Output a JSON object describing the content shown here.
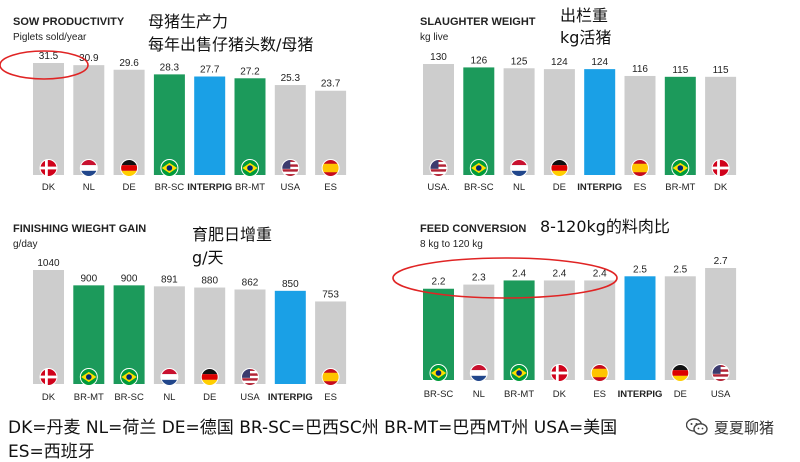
{
  "colors": {
    "grey": "#cdcdcd",
    "green": "#1c9a5b",
    "blue": "#1aa0e6",
    "ellipse": "#e02424"
  },
  "chart_data": [
    {
      "type": "bar",
      "title": "SOW PRODUCTIVITY",
      "subtitle": "Piglets sold/year",
      "annotation": [
        "母猪生产力",
        "每年出售仔猪头数/母猪"
      ],
      "categories": [
        "DK",
        "NL",
        "DE",
        "BR-SC",
        "INTERPIG",
        "BR-MT",
        "USA",
        "ES"
      ],
      "values": [
        31.5,
        30.9,
        29.6,
        28.3,
        27.7,
        27.2,
        25.3,
        23.7
      ],
      "value_labels": [
        "31.5",
        "30.9",
        "29.6",
        "28.3",
        "27.7",
        "27.2",
        "25.3",
        "23.7"
      ],
      "bar_colors": [
        "grey",
        "grey",
        "grey",
        "green",
        "blue",
        "green",
        "grey",
        "grey"
      ],
      "flags": [
        "dk",
        "nl",
        "de",
        "br",
        "none",
        "br",
        "us",
        "es"
      ],
      "flag_in_bar": [
        false,
        false,
        false,
        true,
        false,
        true,
        false,
        false
      ],
      "ylim": [
        0,
        31.5
      ],
      "highlight": [
        0,
        1
      ]
    },
    {
      "type": "bar",
      "title": "SLAUGHTER WEIGHT",
      "subtitle": "kg live",
      "annotation": [
        "出栏重",
        "kg活猪"
      ],
      "categories": [
        "USA.",
        "BR-SC",
        "NL",
        "DE",
        "INTERPIG",
        "ES",
        "BR-MT",
        "DK"
      ],
      "values": [
        130,
        126,
        125,
        124,
        124,
        116,
        115,
        115
      ],
      "value_labels": [
        "130",
        "126",
        "125",
        "124",
        "124",
        "116",
        "115",
        "115"
      ],
      "bar_colors": [
        "grey",
        "green",
        "grey",
        "grey",
        "blue",
        "grey",
        "green",
        "grey"
      ],
      "flags": [
        "us",
        "br",
        "nl",
        "de",
        "none",
        "es",
        "br",
        "dk"
      ],
      "flag_in_bar": [
        false,
        true,
        false,
        false,
        false,
        false,
        true,
        false
      ],
      "ylim": [
        0,
        130
      ],
      "highlight": []
    },
    {
      "type": "bar",
      "title": "FINISHING WIEGHT GAIN",
      "subtitle": "g/day",
      "annotation": [
        "育肥日增重",
        "g/天"
      ],
      "categories": [
        "DK",
        "BR-MT",
        "BR-SC",
        "NL",
        "DE",
        "USA",
        "INTERPIG",
        "ES"
      ],
      "values": [
        1040,
        900,
        900,
        891,
        880,
        862,
        850,
        753
      ],
      "value_labels": [
        "1040",
        "900",
        "900",
        "891",
        "880",
        "862",
        "850",
        "753"
      ],
      "bar_colors": [
        "grey",
        "green",
        "green",
        "grey",
        "grey",
        "grey",
        "blue",
        "grey"
      ],
      "flags": [
        "dk",
        "br",
        "br",
        "nl",
        "de",
        "us",
        "none",
        "es"
      ],
      "flag_in_bar": [
        false,
        true,
        true,
        false,
        false,
        false,
        false,
        false
      ],
      "ylim": [
        0,
        1040
      ],
      "highlight": []
    },
    {
      "type": "bar",
      "title": "FEED CONVERSION",
      "subtitle": "8 kg to 120 kg",
      "annotation": [
        "8-120kg的料肉比"
      ],
      "categories": [
        "BR-SC",
        "NL",
        "BR-MT",
        "DK",
        "ES",
        "INTERPIG",
        "DE",
        "USA"
      ],
      "values": [
        2.2,
        2.3,
        2.4,
        2.4,
        2.4,
        2.5,
        2.5,
        2.7
      ],
      "value_labels": [
        "2.2",
        "2.3",
        "2.4",
        "2.4",
        "2.4",
        "2.5",
        "2.5",
        "2.7"
      ],
      "bar_colors": [
        "green",
        "grey",
        "green",
        "grey",
        "grey",
        "blue",
        "grey",
        "grey"
      ],
      "flags": [
        "br",
        "nl",
        "br",
        "dk",
        "es",
        "none",
        "de",
        "us"
      ],
      "flag_in_bar": [
        true,
        false,
        true,
        false,
        false,
        false,
        false,
        false
      ],
      "ylim": [
        0,
        2.7
      ],
      "highlight": [
        0,
        1,
        2,
        3,
        4
      ]
    }
  ],
  "legend": {
    "line1": "DK=丹麦  NL=荷兰  DE=德国  BR-SC=巴西SC州  BR-MT=巴西MT州  USA=美国",
    "line2": "ES=西班牙"
  },
  "watermark": {
    "text": "夏夏聊猪",
    "icon": "wechat-icon"
  }
}
